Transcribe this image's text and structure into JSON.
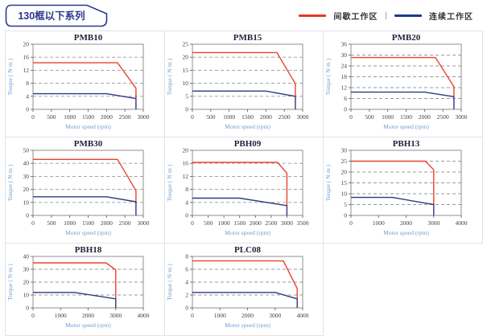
{
  "header": {
    "series_label": "130框以下系列"
  },
  "legend": {
    "items": [
      {
        "id": "intermittent_zone",
        "label": "间歇工作区",
        "color": "#e23a22"
      },
      {
        "id": "continuous_zone",
        "label": "连续工作区",
        "color": "#1f3a8f"
      }
    ],
    "separator": "|"
  },
  "colors": {
    "accent_red": "#e8432e",
    "line_navy": "#2e3a7d",
    "header_navy": "#2b3990",
    "grid_dash": "#9a9a9a",
    "cell_border": "#e3e3e3"
  },
  "chart_data": [
    {
      "type": "line",
      "title": "PMB10",
      "xlabel": "Motor speed (rpm)",
      "ylabel": "Torque ( N·m )",
      "xlim": [
        0,
        3000
      ],
      "xticks": [
        0,
        500,
        1000,
        1500,
        2000,
        2500,
        3000
      ],
      "ylim": [
        0,
        20
      ],
      "yticks": [
        0,
        4,
        8,
        12,
        16,
        20
      ],
      "grid": "dashed-horizontal",
      "legend_position": "none",
      "series": [
        {
          "id": "intermittent_zone",
          "name": "间歇工作区",
          "color": "#e8432e",
          "points": [
            [
              0,
              14.3
            ],
            [
              2300,
              14.3
            ],
            [
              2800,
              6.5
            ],
            [
              2800,
              3.3
            ]
          ]
        },
        {
          "id": "continuous_zone",
          "name": "连续工作区",
          "color": "#2e3a7d",
          "points": [
            [
              0,
              4.8
            ],
            [
              2000,
              4.8
            ],
            [
              2800,
              3.3
            ],
            [
              2800,
              0
            ]
          ]
        }
      ]
    },
    {
      "type": "line",
      "title": "PMB15",
      "xlabel": "Motor speed (rpm)",
      "ylabel": "Torque ( N·m )",
      "xlim": [
        0,
        3000
      ],
      "xticks": [
        0,
        500,
        1000,
        1500,
        2000,
        2500,
        3000
      ],
      "ylim": [
        0,
        25
      ],
      "yticks": [
        0,
        5,
        10,
        15,
        20,
        25
      ],
      "grid": "dashed-horizontal",
      "legend_position": "none",
      "series": [
        {
          "id": "intermittent_zone",
          "name": "间歇工作区",
          "color": "#e8432e",
          "points": [
            [
              0,
              21.8
            ],
            [
              2300,
              21.8
            ],
            [
              2800,
              9.8
            ],
            [
              2800,
              5
            ]
          ]
        },
        {
          "id": "continuous_zone",
          "name": "连续工作区",
          "color": "#2e3a7d",
          "points": [
            [
              0,
              7
            ],
            [
              2000,
              7
            ],
            [
              2800,
              5
            ],
            [
              2800,
              0
            ]
          ]
        }
      ]
    },
    {
      "type": "line",
      "title": "PMB20",
      "xlabel": "Motor speed (rpm)",
      "ylabel": "Torque ( N·m )",
      "xlim": [
        0,
        3000
      ],
      "xticks": [
        0,
        500,
        1000,
        1500,
        2000,
        2500,
        3000
      ],
      "ylim": [
        0,
        36
      ],
      "yticks": [
        0,
        6,
        12,
        18,
        24,
        30,
        36
      ],
      "grid": "dashed-horizontal",
      "legend_position": "none",
      "series": [
        {
          "id": "intermittent_zone",
          "name": "间歇工作区",
          "color": "#e8432e",
          "points": [
            [
              0,
              28.6
            ],
            [
              2300,
              28.6
            ],
            [
              2800,
              12.5
            ],
            [
              2800,
              7
            ]
          ]
        },
        {
          "id": "continuous_zone",
          "name": "连续工作区",
          "color": "#2e3a7d",
          "points": [
            [
              0,
              9.5
            ],
            [
              2000,
              9.5
            ],
            [
              2800,
              7
            ],
            [
              2800,
              0
            ]
          ]
        }
      ]
    },
    {
      "type": "line",
      "title": "PMB30",
      "xlabel": "Motor speed (rpm)",
      "ylabel": "Torque ( N·m )",
      "xlim": [
        0,
        3000
      ],
      "xticks": [
        0,
        500,
        1000,
        1500,
        2000,
        2500,
        3000
      ],
      "ylim": [
        0,
        50
      ],
      "yticks": [
        0,
        10,
        20,
        30,
        40,
        50
      ],
      "grid": "dashed-horizontal",
      "legend_position": "none",
      "series": [
        {
          "id": "intermittent_zone",
          "name": "间歇工作区",
          "color": "#e8432e",
          "points": [
            [
              0,
              43
            ],
            [
              2300,
              43
            ],
            [
              2800,
              19
            ],
            [
              2800,
              10.5
            ]
          ]
        },
        {
          "id": "continuous_zone",
          "name": "连续工作区",
          "color": "#2e3a7d",
          "points": [
            [
              0,
              14.3
            ],
            [
              2000,
              14.3
            ],
            [
              2800,
              10.5
            ],
            [
              2800,
              0
            ]
          ]
        }
      ]
    },
    {
      "type": "line",
      "title": "PBH09",
      "xlabel": "Motor speed (rpm)",
      "ylabel": "Torque ( N·m )",
      "xlim": [
        0,
        3500
      ],
      "xticks": [
        0,
        500,
        1000,
        1500,
        2000,
        2500,
        3000,
        3500
      ],
      "ylim": [
        0,
        20
      ],
      "yticks": [
        0,
        4,
        8,
        12,
        16,
        20
      ],
      "grid": "dashed-horizontal",
      "legend_position": "none",
      "series": [
        {
          "id": "intermittent_zone",
          "name": "间歇工作区",
          "color": "#e8432e",
          "points": [
            [
              0,
              16.3
            ],
            [
              2700,
              16.3
            ],
            [
              3000,
              13
            ],
            [
              3000,
              3
            ]
          ]
        },
        {
          "id": "continuous_zone",
          "name": "连续工作区",
          "color": "#2e3a7d",
          "points": [
            [
              0,
              5.3
            ],
            [
              1500,
              5.3
            ],
            [
              3000,
              3
            ],
            [
              3000,
              0
            ]
          ]
        }
      ]
    },
    {
      "type": "line",
      "title": "PBH13",
      "xlabel": "Motor speed (rpm)",
      "ylabel": "Torque ( N·m )",
      "xlim": [
        0,
        4000
      ],
      "xticks": [
        0,
        1000,
        2000,
        3000,
        4000
      ],
      "ylim": [
        0,
        30
      ],
      "yticks": [
        0,
        5,
        10,
        15,
        20,
        25,
        30
      ],
      "grid": "dashed-horizontal",
      "legend_position": "none",
      "series": [
        {
          "id": "intermittent_zone",
          "name": "间歇工作区",
          "color": "#e8432e",
          "points": [
            [
              0,
              25
            ],
            [
              2700,
              25
            ],
            [
              3000,
              21
            ],
            [
              3000,
              5
            ]
          ]
        },
        {
          "id": "continuous_zone",
          "name": "连续工作区",
          "color": "#2e3a7d",
          "points": [
            [
              0,
              8.3
            ],
            [
              1500,
              8.3
            ],
            [
              3000,
              5
            ],
            [
              3000,
              0
            ]
          ]
        }
      ]
    },
    {
      "type": "line",
      "title": "PBH18",
      "xlabel": "Motor speed (rpm)",
      "ylabel": "Torque ( N·m )",
      "xlim": [
        0,
        4000
      ],
      "xticks": [
        0,
        1000,
        2000,
        3000,
        4000
      ],
      "ylim": [
        0,
        40
      ],
      "yticks": [
        0,
        10,
        20,
        30,
        40
      ],
      "grid": "dashed-horizontal",
      "legend_position": "none",
      "series": [
        {
          "id": "intermittent_zone",
          "name": "间歇工作区",
          "color": "#e8432e",
          "points": [
            [
              0,
              35
            ],
            [
              2650,
              35
            ],
            [
              3000,
              29.5
            ],
            [
              3000,
              7
            ]
          ]
        },
        {
          "id": "continuous_zone",
          "name": "连续工作区",
          "color": "#2e3a7d",
          "points": [
            [
              0,
              12
            ],
            [
              1500,
              12
            ],
            [
              3000,
              7
            ],
            [
              3000,
              0
            ]
          ]
        }
      ]
    },
    {
      "type": "line",
      "title": "PLC08",
      "xlabel": "Motor speed (rpm)",
      "ylabel": "Torque ( N·m )",
      "xlim": [
        0,
        4000
      ],
      "xticks": [
        0,
        1000,
        2000,
        3000,
        4000
      ],
      "ylim": [
        0,
        8
      ],
      "yticks": [
        0,
        2,
        4,
        6,
        8
      ],
      "grid": "dashed-horizontal",
      "legend_position": "none",
      "series": [
        {
          "id": "intermittent_zone",
          "name": "间歇工作区",
          "color": "#e8432e",
          "points": [
            [
              0,
              7.3
            ],
            [
              3300,
              7.3
            ],
            [
              3800,
              3
            ],
            [
              3800,
              1.4
            ]
          ]
        },
        {
          "id": "continuous_zone",
          "name": "连续工作区",
          "color": "#2e3a7d",
          "points": [
            [
              0,
              2.4
            ],
            [
              3000,
              2.4
            ],
            [
              3800,
              1.4
            ],
            [
              3800,
              0
            ]
          ]
        }
      ]
    }
  ]
}
